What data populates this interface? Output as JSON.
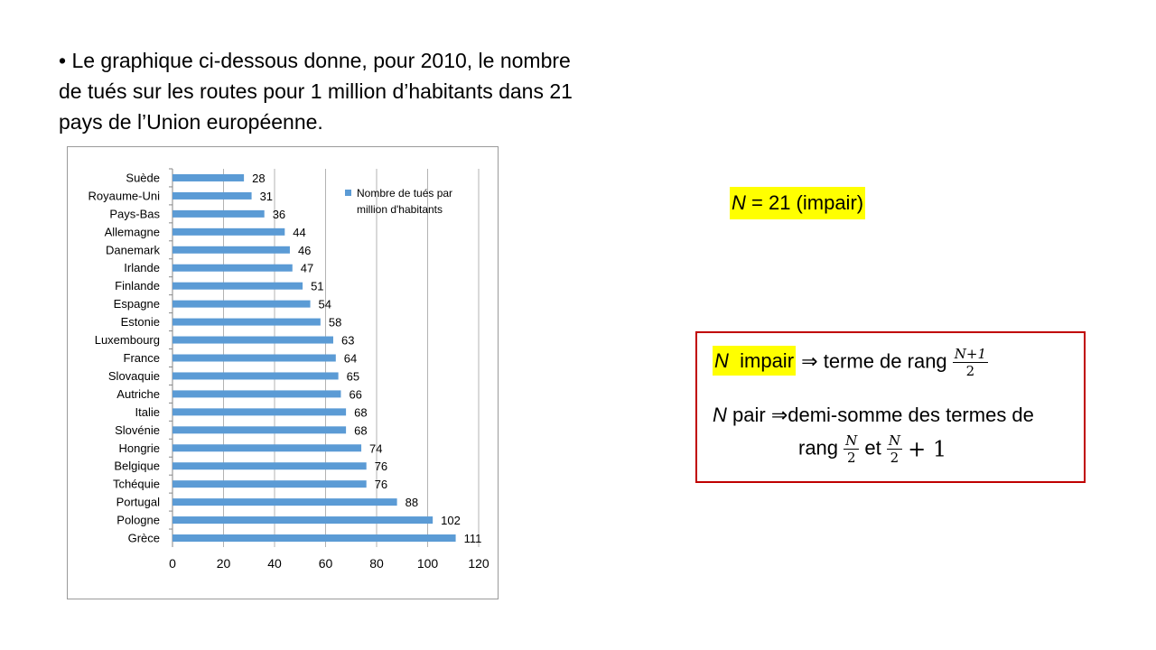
{
  "intro": {
    "bullet": "•",
    "line1": "Le graphique ci-dessous donne, pour 2010, le nombre",
    "line2": "de tués sur les routes pour 1 million d’habitants dans 21",
    "line3": "pays de l’Union européenne."
  },
  "chart_data": {
    "type": "bar",
    "orientation": "horizontal",
    "categories": [
      "Suède",
      "Royaume-Uni",
      "Pays-Bas",
      "Allemagne",
      "Danemark",
      "Irlande",
      "Finlande",
      "Espagne",
      "Estonie",
      "Luxembourg",
      "France",
      "Slovaquie",
      "Autriche",
      "Italie",
      "Slovénie",
      "Hongrie",
      "Belgique",
      "Tchéquie",
      "Portugal",
      "Pologne",
      "Grèce"
    ],
    "series": [
      {
        "name": "Nombre de tués par million d'habitants",
        "values": [
          28,
          31,
          36,
          44,
          46,
          47,
          51,
          54,
          58,
          63,
          64,
          65,
          66,
          68,
          68,
          74,
          76,
          76,
          88,
          102,
          111
        ]
      }
    ],
    "xlim": [
      0,
      120
    ],
    "xticks": [
      0,
      20,
      40,
      60,
      80,
      100,
      120
    ],
    "grid": "vertical",
    "legend_position": "top-right",
    "legend_lines": [
      "Nombre de tués par",
      "million d'habitants"
    ],
    "bar_color": "#5b9bd5",
    "data_labels": true
  },
  "info": {
    "n_label": "N",
    "n_value": " = 21 (impair)"
  },
  "rule": {
    "n": "N",
    "impair": "impair",
    "implies": "⇒",
    "odd_text": " terme de rang ",
    "odd_frac_num": "N+1",
    "odd_frac_den": "2",
    "pair_text": " pair ",
    "even_text": "demi-somme des termes de",
    "rang": "rang ",
    "et": " et ",
    "even_frac_num": "N",
    "even_frac_den": "2",
    "plus_one": "+ 1"
  },
  "colors": {
    "highlight": "#ffff00",
    "box_border": "#c00000",
    "bar": "#5b9bd5"
  }
}
